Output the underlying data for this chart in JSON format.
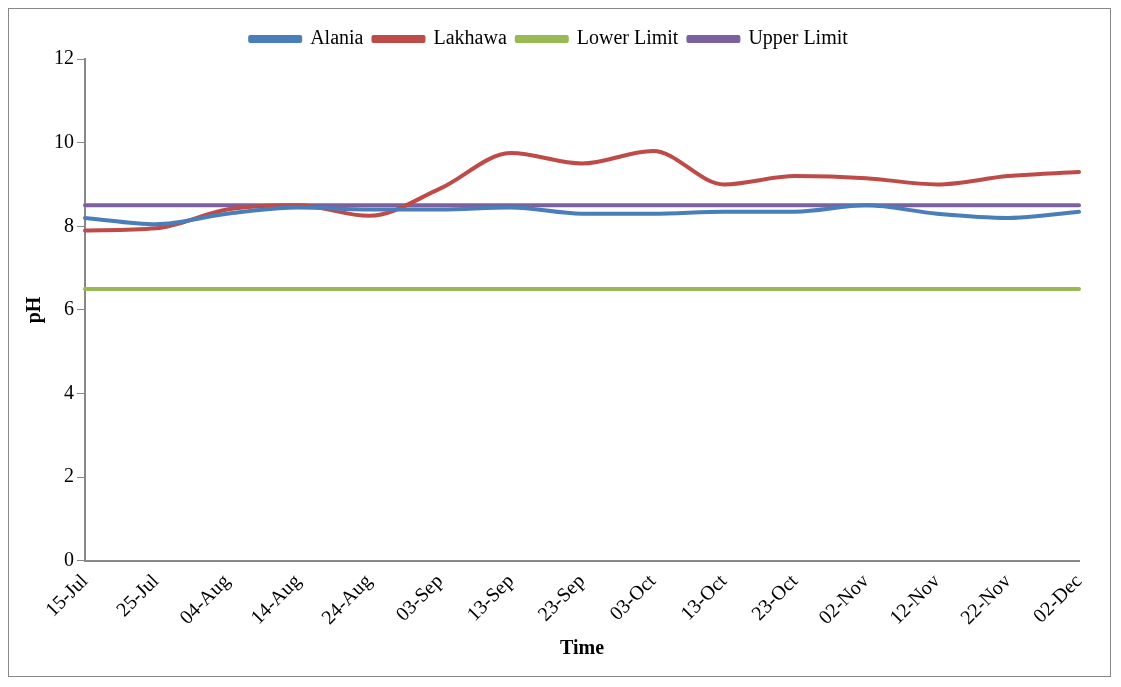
{
  "chart_data": {
    "type": "line",
    "xlabel": "Time",
    "ylabel": "pH",
    "categories": [
      "15-Jul",
      "25-Jul",
      "04-Aug",
      "14-Aug",
      "24-Aug",
      "03-Sep",
      "13-Sep",
      "23-Sep",
      "03-Oct",
      "13-Oct",
      "23-Oct",
      "02-Nov",
      "12-Nov",
      "22-Nov",
      "02-Dec"
    ],
    "series": [
      {
        "name": "Alania",
        "color": "#4a7ebb",
        "values": [
          8.2,
          8.05,
          8.3,
          8.45,
          8.4,
          8.4,
          8.45,
          8.3,
          8.3,
          8.35,
          8.35,
          8.5,
          8.3,
          8.2,
          8.35
        ]
      },
      {
        "name": "Lakhawa",
        "color": "#be4b48",
        "values": [
          7.9,
          7.95,
          8.4,
          8.5,
          8.25,
          8.9,
          9.75,
          9.5,
          9.8,
          9.0,
          9.2,
          9.15,
          9.0,
          9.2,
          9.3
        ]
      },
      {
        "name": "Lower Limit",
        "color": "#98b954",
        "values": [
          6.5,
          6.5,
          6.5,
          6.5,
          6.5,
          6.5,
          6.5,
          6.5,
          6.5,
          6.5,
          6.5,
          6.5,
          6.5,
          6.5,
          6.5
        ]
      },
      {
        "name": "Upper Limit",
        "color": "#7d60a0",
        "values": [
          8.5,
          8.5,
          8.5,
          8.5,
          8.5,
          8.5,
          8.5,
          8.5,
          8.5,
          8.5,
          8.5,
          8.5,
          8.5,
          8.5,
          8.5
        ]
      }
    ],
    "ylim": [
      0,
      12
    ],
    "yticks": [
      0,
      2,
      4,
      6,
      8,
      10,
      12
    ],
    "grid": false,
    "legend": "top",
    "marker": "none"
  }
}
